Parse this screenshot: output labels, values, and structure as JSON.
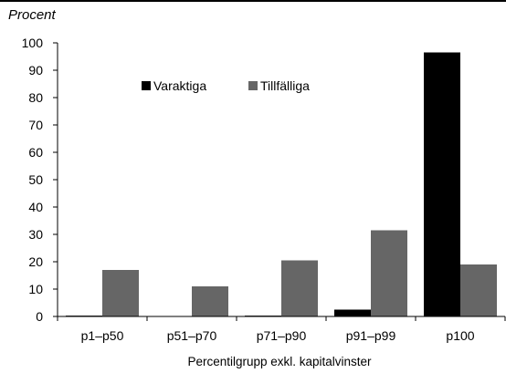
{
  "chart_data": {
    "type": "bar",
    "ylabel": "Procent",
    "xlabel": "Percentilgrupp exkl. kapitalvinster",
    "categories": [
      "p1–p50",
      "p51–p70",
      "p71–p90",
      "p91–p99",
      "p100"
    ],
    "series": [
      {
        "name": "Varaktiga",
        "values": [
          0.3,
          0.1,
          0.3,
          2.5,
          96.5
        ],
        "color": "#000000"
      },
      {
        "name": "Tillfälliga",
        "values": [
          17,
          11,
          20.5,
          31.5,
          19
        ],
        "color": "#666666"
      }
    ],
    "ylim": [
      0,
      100
    ],
    "yticks": [
      "0",
      "10",
      "20",
      "30",
      "40",
      "50",
      "60",
      "70",
      "80",
      "90",
      "100"
    ],
    "grid": false,
    "legend": "top-center, inside plot"
  }
}
